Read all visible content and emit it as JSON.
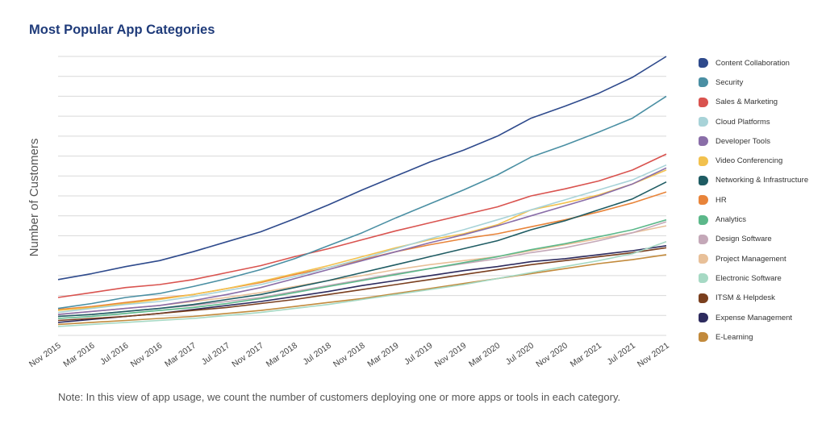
{
  "chart_data": {
    "type": "line",
    "title": "Most Popular App Categories",
    "ylabel": "Number of Customers",
    "xlabel": "",
    "note": "Note: In this view of app usage, we count the number of customers deploying one or more apps or tools in each category.",
    "x_tick_labels": [
      "Nov 2015",
      "Mar 2016",
      "Jul 2016",
      "Nov 2016",
      "Mar 2017",
      "Jul 2017",
      "Nov 2017",
      "Mar 2018",
      "Jul 2018",
      "Nov 2018",
      "Mar 2019",
      "Jul 2019",
      "Nov 2019",
      "Mar 2020",
      "Jul 2020",
      "Nov 2020",
      "Mar 2021",
      "Jul 2021",
      "Nov 2021"
    ],
    "ylim": [
      0,
      14
    ],
    "grid": true,
    "legend_position": "right",
    "series": [
      {
        "name": "Content Collaboration",
        "color": "#2e4a8c",
        "values": [
          2.8,
          3.1,
          3.45,
          3.75,
          4.2,
          4.7,
          5.2,
          5.85,
          6.55,
          7.3,
          8.0,
          8.7,
          9.3,
          10.0,
          10.9,
          11.5,
          12.15,
          12.95,
          14.0
        ]
      },
      {
        "name": "Security",
        "color": "#4a8fa3",
        "values": [
          1.35,
          1.6,
          1.9,
          2.1,
          2.45,
          2.85,
          3.3,
          3.85,
          4.5,
          5.15,
          5.9,
          6.6,
          7.3,
          8.05,
          8.95,
          9.55,
          10.2,
          10.9,
          12.0
        ]
      },
      {
        "name": "Sales & Marketing",
        "color": "#d9534f",
        "values": [
          1.9,
          2.15,
          2.4,
          2.55,
          2.8,
          3.15,
          3.5,
          3.95,
          4.35,
          4.8,
          5.25,
          5.65,
          6.05,
          6.45,
          7.0,
          7.35,
          7.75,
          8.3,
          9.1
        ]
      },
      {
        "name": "Cloud Platforms",
        "color": "#a8d3d8",
        "values": [
          1.15,
          1.35,
          1.55,
          1.7,
          1.95,
          2.25,
          2.55,
          2.95,
          3.4,
          3.85,
          4.35,
          4.85,
          5.3,
          5.8,
          6.3,
          6.8,
          7.3,
          7.8,
          8.55
        ]
      },
      {
        "name": "Developer Tools",
        "color": "#8a6ea8",
        "values": [
          1.05,
          1.2,
          1.35,
          1.5,
          1.75,
          2.05,
          2.4,
          2.85,
          3.3,
          3.75,
          4.2,
          4.65,
          5.05,
          5.5,
          6.0,
          6.5,
          7.0,
          7.6,
          8.4
        ]
      },
      {
        "name": "Video Conferencing",
        "color": "#f2c14e",
        "values": [
          1.25,
          1.4,
          1.6,
          1.8,
          2.05,
          2.35,
          2.7,
          3.1,
          3.5,
          3.95,
          4.4,
          4.8,
          5.1,
          5.55,
          6.3,
          6.65,
          7.05,
          7.6,
          8.3
        ]
      },
      {
        "name": "Networking & Infrastructure",
        "color": "#1f5c63",
        "values": [
          0.95,
          1.05,
          1.2,
          1.35,
          1.55,
          1.8,
          2.05,
          2.4,
          2.75,
          3.15,
          3.55,
          3.95,
          4.35,
          4.75,
          5.3,
          5.75,
          6.3,
          6.85,
          7.7
        ]
      },
      {
        "name": "HR",
        "color": "#e8843a",
        "values": [
          1.3,
          1.45,
          1.65,
          1.85,
          2.05,
          2.35,
          2.65,
          3.05,
          3.4,
          3.8,
          4.2,
          4.55,
          4.85,
          5.1,
          5.45,
          5.8,
          6.2,
          6.65,
          7.2
        ]
      },
      {
        "name": "Analytics",
        "color": "#5cb88a",
        "values": [
          0.85,
          0.95,
          1.1,
          1.25,
          1.4,
          1.6,
          1.85,
          2.15,
          2.45,
          2.75,
          3.05,
          3.35,
          3.65,
          3.95,
          4.3,
          4.6,
          4.95,
          5.3,
          5.8
        ]
      },
      {
        "name": "Design Software",
        "color": "#c4a8b8",
        "values": [
          0.95,
          1.05,
          1.2,
          1.35,
          1.5,
          1.7,
          1.9,
          2.2,
          2.5,
          2.8,
          3.1,
          3.35,
          3.6,
          3.85,
          4.15,
          4.4,
          4.75,
          5.15,
          5.7
        ]
      },
      {
        "name": "Project Management",
        "color": "#e8c099",
        "values": [
          1.05,
          1.2,
          1.35,
          1.5,
          1.7,
          1.9,
          2.15,
          2.45,
          2.75,
          3.0,
          3.3,
          3.55,
          3.75,
          3.95,
          4.25,
          4.55,
          4.85,
          5.15,
          5.5
        ]
      },
      {
        "name": "Electronic Software",
        "color": "#a6d9c4",
        "values": [
          0.45,
          0.55,
          0.65,
          0.75,
          0.85,
          1.0,
          1.15,
          1.35,
          1.55,
          1.8,
          2.05,
          2.3,
          2.55,
          2.85,
          3.15,
          3.45,
          3.75,
          4.1,
          4.7
        ]
      },
      {
        "name": "ITSM & Helpdesk",
        "color": "#7a3f1e",
        "values": [
          0.75,
          0.85,
          0.95,
          1.1,
          1.25,
          1.4,
          1.6,
          1.8,
          2.05,
          2.3,
          2.55,
          2.8,
          3.05,
          3.3,
          3.55,
          3.75,
          3.95,
          4.15,
          4.4
        ]
      },
      {
        "name": "Expense Management",
        "color": "#2d2b5e",
        "values": [
          0.65,
          0.8,
          0.95,
          1.1,
          1.3,
          1.5,
          1.7,
          1.95,
          2.2,
          2.5,
          2.75,
          3.0,
          3.25,
          3.45,
          3.7,
          3.85,
          4.05,
          4.25,
          4.5
        ]
      },
      {
        "name": "E-Learning",
        "color": "#c28a3c",
        "values": [
          0.55,
          0.65,
          0.75,
          0.85,
          0.95,
          1.1,
          1.25,
          1.45,
          1.65,
          1.85,
          2.1,
          2.35,
          2.6,
          2.85,
          3.1,
          3.35,
          3.6,
          3.8,
          4.05
        ]
      }
    ]
  }
}
